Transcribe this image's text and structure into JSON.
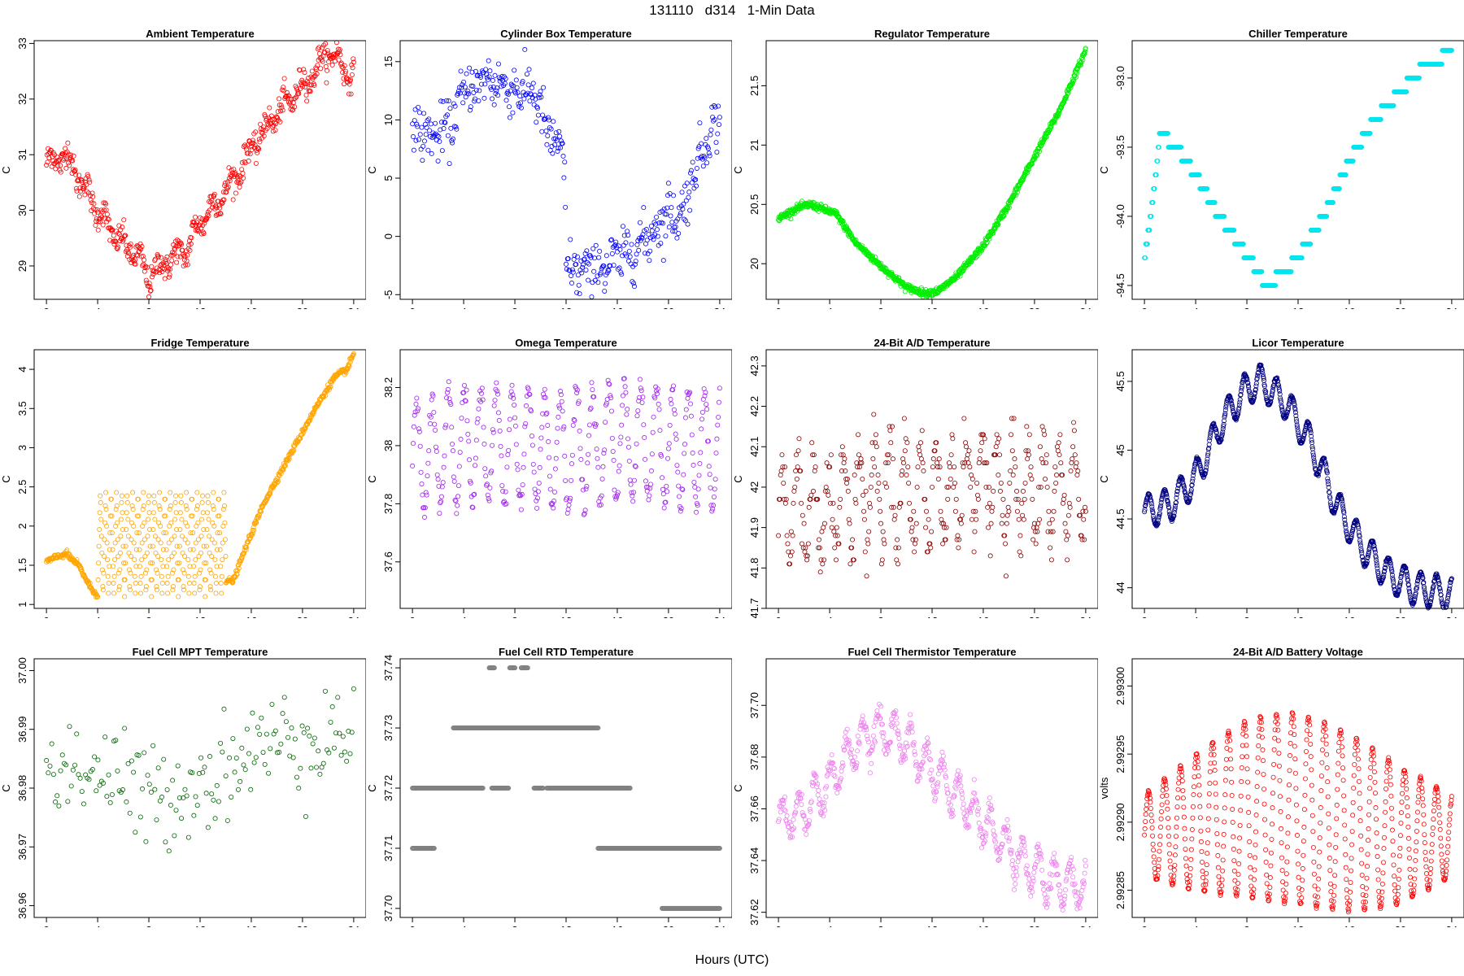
{
  "figure": {
    "title": "131110   d314   1-Min Data",
    "xlabel": "Hours (UTC)"
  },
  "chart_data": [
    {
      "type": "scatter",
      "title": "Ambient Temperature",
      "ylabel": "C",
      "color": "#ff0000",
      "xlim": [
        -0.96,
        24.96
      ],
      "ylim": [
        28.4,
        33.05
      ],
      "xticks": [
        0,
        4,
        8,
        12,
        16,
        20,
        24
      ],
      "yticks": [
        29,
        30,
        31,
        32,
        33
      ],
      "shape": "curve",
      "keypoints": [
        [
          0,
          30.85
        ],
        [
          1.5,
          31.0
        ],
        [
          3,
          30.4
        ],
        [
          4,
          30.0
        ],
        [
          5.5,
          29.5
        ],
        [
          7,
          29.2
        ],
        [
          8,
          28.8
        ],
        [
          9.5,
          29.1
        ],
        [
          11,
          29.3
        ],
        [
          12,
          29.8
        ],
        [
          13.5,
          30.2
        ],
        [
          14.5,
          30.5
        ],
        [
          16,
          31.1
        ],
        [
          17.5,
          31.6
        ],
        [
          19,
          32.0
        ],
        [
          21,
          32.5
        ],
        [
          22,
          32.85
        ],
        [
          23,
          32.65
        ],
        [
          24,
          32.35
        ]
      ],
      "noise": 0.12,
      "wobble": [
        0.15,
        1.4
      ],
      "density": 4
    },
    {
      "type": "scatter",
      "title": "Cylinder Box Temperature",
      "ylabel": "C",
      "color": "#0000ff",
      "xlim": [
        -0.96,
        24.96
      ],
      "ylim": [
        -5.4,
        16.8
      ],
      "xticks": [
        0,
        4,
        8,
        12,
        16,
        20,
        24
      ],
      "yticks": [
        -5,
        0,
        5,
        10,
        15
      ],
      "shape": "curve",
      "keypoints": [
        [
          0,
          9.5
        ],
        [
          1.5,
          8.5
        ],
        [
          3,
          9.5
        ],
        [
          4,
          12.5
        ],
        [
          6,
          13.5
        ],
        [
          8,
          12.5
        ],
        [
          9.5,
          12.5
        ],
        [
          10.5,
          9.0
        ],
        [
          11.5,
          7.5
        ],
        [
          11.9,
          6.0
        ],
        [
          12.0,
          -2.8
        ],
        [
          14,
          -3.0
        ],
        [
          16,
          -2.0
        ],
        [
          18,
          -0.5
        ],
        [
          20,
          2.0
        ],
        [
          21,
          1.8
        ],
        [
          22,
          5.5
        ],
        [
          23,
          8.5
        ],
        [
          24,
          10.2
        ]
      ],
      "noise": 1.1,
      "wobble": [
        0.5,
        1.1
      ],
      "density": 3
    },
    {
      "type": "scatter",
      "title": "Regulator Temperature",
      "ylabel": "C",
      "color": "#00ee00",
      "xlim": [
        -0.96,
        24.96
      ],
      "ylim": [
        19.7,
        21.88
      ],
      "xticks": [
        0,
        4,
        8,
        12,
        16,
        20,
        24
      ],
      "yticks": [
        20.0,
        20.5,
        21.0,
        21.5
      ],
      "shape": "curve",
      "keypoints": [
        [
          0,
          20.38
        ],
        [
          1.5,
          20.47
        ],
        [
          2.5,
          20.5
        ],
        [
          4.5,
          20.42
        ],
        [
          6,
          20.18
        ],
        [
          8,
          19.98
        ],
        [
          10,
          19.8
        ],
        [
          11.5,
          19.75
        ],
        [
          12.5,
          19.77
        ],
        [
          14,
          19.9
        ],
        [
          16,
          20.15
        ],
        [
          18,
          20.5
        ],
        [
          20,
          20.9
        ],
        [
          22,
          21.3
        ],
        [
          24,
          21.8
        ]
      ],
      "noise": 0.015,
      "wobble": [
        0,
        1
      ],
      "density": 6
    },
    {
      "type": "scatter",
      "title": "Chiller Temperature",
      "ylabel": "C",
      "color": "#00e5ee",
      "xlim": [
        -0.96,
        24.96
      ],
      "ylim": [
        -94.6,
        -92.73
      ],
      "xticks": [
        0,
        4,
        8,
        12,
        16,
        20,
        24
      ],
      "yticks": [
        -93.0,
        -93.5,
        -94.0,
        -94.5
      ],
      "yticklabels": [
        "-93.0",
        "-93.5",
        "-94.0",
        "-94.5"
      ],
      "shape": "step",
      "keypoints": [
        [
          0,
          -94.3
        ],
        [
          0.5,
          -94.0
        ],
        [
          1.0,
          -93.6
        ],
        [
          1.2,
          -93.4
        ],
        [
          2.5,
          -93.5
        ],
        [
          4,
          -93.7
        ],
        [
          5.5,
          -93.95
        ],
        [
          7,
          -94.15
        ],
        [
          8.5,
          -94.35
        ],
        [
          9.5,
          -94.5
        ],
        [
          11,
          -94.4
        ],
        [
          12,
          -94.3
        ],
        [
          14,
          -94.0
        ],
        [
          16,
          -93.6
        ],
        [
          18,
          -93.3
        ],
        [
          20,
          -93.1
        ],
        [
          21.5,
          -92.95
        ],
        [
          22.5,
          -92.9
        ],
        [
          24,
          -92.8
        ]
      ],
      "step": 0.1,
      "noise": 0.0,
      "wobble": [
        0,
        1
      ],
      "density": 5
    },
    {
      "type": "scatter",
      "title": "Fridge Temperature",
      "ylabel": "C",
      "color": "#ffa500",
      "xlim": [
        -0.96,
        24.96
      ],
      "ylim": [
        0.95,
        4.25
      ],
      "xticks": [
        0,
        4,
        8,
        12,
        16,
        20,
        24
      ],
      "yticks": [
        1.0,
        1.5,
        2.0,
        2.5,
        3.0,
        3.5,
        4.0
      ],
      "shape": "fridge",
      "keypoints": [
        [
          0,
          1.55
        ],
        [
          1.5,
          1.65
        ],
        [
          2.5,
          1.5
        ],
        [
          3.5,
          1.2
        ],
        [
          4.1,
          1.1
        ],
        [
          14.0,
          1.3
        ],
        [
          14.6,
          1.3
        ],
        [
          15.5,
          1.7
        ],
        [
          17,
          2.3
        ],
        [
          19,
          2.9
        ],
        [
          21,
          3.5
        ],
        [
          22.5,
          3.9
        ],
        [
          23.5,
          4.0
        ],
        [
          24,
          4.2
        ]
      ],
      "band": [
        4.0,
        14.0,
        1.1,
        2.45
      ],
      "noise": 0.02,
      "wobble": [
        0,
        1
      ],
      "density": 5
    },
    {
      "type": "scatter",
      "title": "Omega Temperature",
      "ylabel": "C",
      "color": "#a020f0",
      "xlim": [
        -0.96,
        24.96
      ],
      "ylim": [
        37.44,
        38.33
      ],
      "xticks": [
        0,
        4,
        8,
        12,
        16,
        20,
        24
      ],
      "yticks": [
        37.6,
        37.8,
        38.0,
        38.2
      ],
      "shape": "curve",
      "keypoints": [
        [
          0,
          37.95
        ],
        [
          4,
          38.0
        ],
        [
          8,
          38.0
        ],
        [
          12,
          37.98
        ],
        [
          16,
          38.02
        ],
        [
          20,
          38.0
        ],
        [
          24,
          37.98
        ]
      ],
      "noise": 0.02,
      "wobble": [
        0.2,
        1.25
      ],
      "density": 3
    },
    {
      "type": "scatter",
      "title": "24-Bit A/D Temperature",
      "ylabel": "C",
      "color": "#8b0000",
      "xlim": [
        -0.96,
        24.96
      ],
      "ylim": [
        41.7,
        42.34
      ],
      "xticks": [
        0,
        4,
        8,
        12,
        16,
        20,
        24
      ],
      "yticks": [
        41.7,
        41.8,
        41.9,
        42.0,
        42.1,
        42.2,
        42.3
      ],
      "shape": "curve",
      "keypoints": [
        [
          0,
          41.95
        ],
        [
          4,
          41.95
        ],
        [
          8,
          42.0
        ],
        [
          12,
          41.98
        ],
        [
          16,
          42.02
        ],
        [
          20,
          41.98
        ],
        [
          24,
          42.0
        ]
      ],
      "step": 0.01,
      "noise": 0.04,
      "wobble": [
        0.12,
        1.2
      ],
      "density": 3
    },
    {
      "type": "scatter",
      "title": "Licor Temperature",
      "ylabel": "C",
      "color": "#000080",
      "xlim": [
        -0.96,
        24.96
      ],
      "ylim": [
        43.85,
        45.73
      ],
      "xticks": [
        0,
        4,
        8,
        12,
        16,
        20,
        24
      ],
      "yticks": [
        44.0,
        44.5,
        45.0,
        45.5
      ],
      "shape": "curve",
      "keypoints": [
        [
          0,
          44.55
        ],
        [
          2,
          44.6
        ],
        [
          4,
          44.8
        ],
        [
          6,
          45.2
        ],
        [
          8,
          45.45
        ],
        [
          9,
          45.5
        ],
        [
          11,
          45.35
        ],
        [
          13,
          45.05
        ],
        [
          15,
          44.6
        ],
        [
          17,
          44.3
        ],
        [
          19,
          44.1
        ],
        [
          21,
          44.0
        ],
        [
          24,
          43.95
        ]
      ],
      "noise": 0.005,
      "wobble": [
        0.12,
        1.25
      ],
      "density": 6
    },
    {
      "type": "scatter",
      "title": "Fuel Cell MPT Temperature",
      "ylabel": "C",
      "color": "#006400",
      "xlim": [
        -0.96,
        24.96
      ],
      "ylim": [
        36.958,
        37.002
      ],
      "xticks": [
        0,
        4,
        8,
        12,
        16,
        20,
        24
      ],
      "yticks": [
        36.96,
        36.97,
        36.98,
        36.99,
        37.0
      ],
      "yticklabels": [
        "36.96",
        "36.97",
        "36.98",
        "36.99",
        "37.00"
      ],
      "shape": "curve",
      "keypoints": [
        [
          0,
          36.984
        ],
        [
          4,
          36.983
        ],
        [
          8,
          36.978
        ],
        [
          12,
          36.981
        ],
        [
          16,
          36.986
        ],
        [
          20,
          36.989
        ],
        [
          24,
          36.989
        ]
      ],
      "noise": 0.0045,
      "wobble": [
        0,
        1
      ],
      "density": 1.2
    },
    {
      "type": "scatter",
      "title": "Fuel Cell RTD Temperature",
      "ylabel": "C",
      "color": "#808080",
      "xlim": [
        -0.96,
        24.96
      ],
      "ylim": [
        37.6985,
        37.7415
      ],
      "xticks": [
        0,
        4,
        8,
        12,
        16,
        20,
        24
      ],
      "yticks": [
        37.7,
        37.71,
        37.72,
        37.73,
        37.74
      ],
      "yticklabels": [
        "37.70",
        "37.71",
        "37.72",
        "37.73",
        "37.74"
      ],
      "shape": "segments",
      "segments": [
        [
          0.0,
          1.7,
          37.71
        ],
        [
          0.0,
          5.5,
          37.72
        ],
        [
          3.2,
          14.5,
          37.73
        ],
        [
          6.0,
          6.4,
          37.74
        ],
        [
          7.6,
          8.0,
          37.74
        ],
        [
          8.5,
          9.0,
          37.74
        ],
        [
          6.2,
          7.5,
          37.72
        ],
        [
          9.5,
          10.2,
          37.72
        ],
        [
          10.5,
          17.0,
          37.72
        ],
        [
          14.5,
          24.0,
          37.71
        ],
        [
          19.5,
          24.0,
          37.7
        ]
      ],
      "density": 4
    },
    {
      "type": "scatter",
      "title": "Fuel Cell Thermistor Temperature",
      "ylabel": "C",
      "color": "#ee82ee",
      "xlim": [
        -0.96,
        24.96
      ],
      "ylim": [
        37.618,
        37.718
      ],
      "xticks": [
        0,
        4,
        8,
        12,
        16,
        20,
        24
      ],
      "yticks": [
        37.62,
        37.64,
        37.66,
        37.68,
        37.7
      ],
      "yticklabels": [
        "37.62",
        "37.64",
        "37.66",
        "37.68",
        "37.70"
      ],
      "shape": "curve",
      "keypoints": [
        [
          0,
          37.655
        ],
        [
          2,
          37.66
        ],
        [
          4,
          37.67
        ],
        [
          6,
          37.685
        ],
        [
          8,
          37.69
        ],
        [
          9,
          37.69
        ],
        [
          11,
          37.68
        ],
        [
          13,
          37.67
        ],
        [
          15,
          37.66
        ],
        [
          17,
          37.65
        ],
        [
          19,
          37.64
        ],
        [
          21,
          37.632
        ],
        [
          24,
          37.63
        ]
      ],
      "noise": 0.002,
      "wobble": [
        0.008,
        1.25
      ],
      "density": 4
    },
    {
      "type": "scatter",
      "title": "24-Bit A/D Battery Voltage",
      "ylabel": "volts",
      "color": "#ff0000",
      "xlim": [
        -0.96,
        24.96
      ],
      "ylim": [
        2.99283,
        2.99302
      ],
      "xticks": [
        0,
        4,
        8,
        12,
        16,
        20,
        24
      ],
      "yticks": [
        2.99285,
        2.9929,
        2.99295,
        2.993
      ],
      "yticklabels": [
        "2.99285",
        "2.99290",
        "2.99295",
        "2.99300"
      ],
      "shape": "curve",
      "keypoints": [
        [
          0,
          2.99289
        ],
        [
          4,
          2.9929
        ],
        [
          8,
          2.99291
        ],
        [
          12,
          2.99291
        ],
        [
          16,
          2.9929
        ],
        [
          20,
          2.99289
        ],
        [
          24,
          2.99289
        ]
      ],
      "noise": 5e-07,
      "wobble": [
        1e-05,
        1.25
      ],
      "wobblegrow": [
        3e-05,
        7e-05
      ],
      "density": 5
    }
  ]
}
